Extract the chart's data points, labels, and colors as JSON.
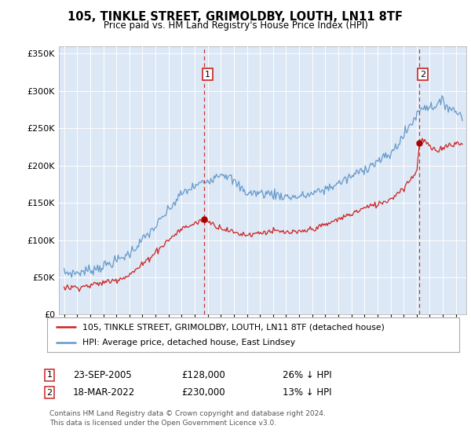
{
  "title": "105, TINKLE STREET, GRIMOLDBY, LOUTH, LN11 8TF",
  "subtitle": "Price paid vs. HM Land Registry's House Price Index (HPI)",
  "hpi_label": "HPI: Average price, detached house, East Lindsey",
  "price_label": "105, TINKLE STREET, GRIMOLDBY, LOUTH, LN11 8TF (detached house)",
  "footer": "Contains HM Land Registry data © Crown copyright and database right 2024.\nThis data is licensed under the Open Government Licence v3.0.",
  "annotation1": {
    "num": "1",
    "date": "23-SEP-2005",
    "price": "£128,000",
    "hpi": "26% ↓ HPI",
    "x": 2005.73
  },
  "annotation2": {
    "num": "2",
    "date": "18-MAR-2022",
    "price": "£230,000",
    "hpi": "13% ↓ HPI",
    "x": 2022.21
  },
  "ylim": [
    0,
    360000
  ],
  "yticks": [
    0,
    50000,
    100000,
    150000,
    200000,
    250000,
    300000,
    350000
  ],
  "bg_color": "#dce8f5",
  "hpi_color": "#6699cc",
  "price_color": "#cc2222",
  "grid_color": "#ffffff",
  "annotation_line_color": "#cc3333",
  "xmin": 1994.6,
  "xmax": 2025.8,
  "dot_color": "#aa0000",
  "dot_price1": 128000,
  "dot_price2": 230000
}
